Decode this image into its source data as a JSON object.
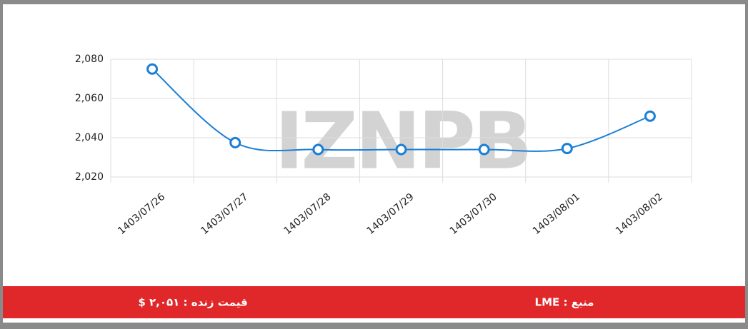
{
  "chart_data": {
    "type": "line",
    "categories": [
      "1403/07/26",
      "1403/07/27",
      "1403/07/28",
      "1403/07/29",
      "1403/07/30",
      "1403/08/01",
      "1403/08/02"
    ],
    "values": [
      2075,
      2037.5,
      2034,
      2034,
      2034,
      2034.5,
      2051
    ],
    "color": "#1a7fd6",
    "ylim": [
      2020,
      2080
    ],
    "yticks": [
      {
        "value": 2020,
        "label": "2,020"
      },
      {
        "value": 2040,
        "label": "2,040"
      },
      {
        "value": 2060,
        "label": "2,060"
      },
      {
        "value": 2080,
        "label": "2,080"
      }
    ],
    "grid": true,
    "watermark": "IZNPB"
  },
  "footer": {
    "source": "منبع : LME",
    "live_price": "قیمت زنده : ۲,۰۵۱ $"
  }
}
